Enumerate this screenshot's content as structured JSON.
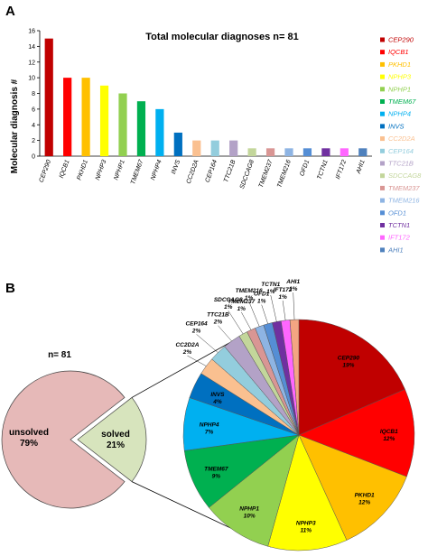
{
  "panels": {
    "a": "A",
    "b": "B"
  },
  "chart_data": [
    {
      "type": "bar",
      "title": "Total molecular diagnoses n= 81",
      "xlabel": "",
      "ylabel": "Molecular diagnosis #",
      "ylim": [
        0,
        16
      ],
      "yticks": [
        0,
        2,
        4,
        6,
        8,
        10,
        12,
        14,
        16
      ],
      "legend_position": "right",
      "categories": [
        "CEP290",
        "IQCB1",
        "PKHD1",
        "NPHP3",
        "NPHP1",
        "TMEM67",
        "NPHP4",
        "INVS",
        "CC2D2A",
        "CEP164",
        "TTC21B",
        "SDCCAG8",
        "TMEM237",
        "TMEM216",
        "OFD1",
        "TCTN1",
        "IFT172",
        "AHI1"
      ],
      "values": [
        15,
        10,
        10,
        9,
        8,
        7,
        6,
        3,
        2,
        2,
        2,
        1,
        1,
        1,
        1,
        1,
        1,
        1
      ],
      "colors": [
        "#c00000",
        "#ff0000",
        "#ffc000",
        "#ffff00",
        "#92d050",
        "#00b050",
        "#00b0f0",
        "#0070c0",
        "#fac090",
        "#93cddd",
        "#b3a2c7",
        "#c3d69b",
        "#d99694",
        "#8eb4e3",
        "#558ed5",
        "#7030a0",
        "#ff66ff",
        "#4f81bd"
      ]
    },
    {
      "type": "pie",
      "total_label": "n= 81",
      "slices": [
        {
          "label": "unsolved",
          "percent": "79%",
          "value": 79,
          "color": "#e6b9b8"
        },
        {
          "label": "solved",
          "percent": "21%",
          "value": 21,
          "color": "#d7e4bd"
        }
      ]
    },
    {
      "type": "pie",
      "slices": [
        {
          "label": "CEP290",
          "percent": "19%",
          "value": 15,
          "color": "#c00000"
        },
        {
          "label": "IQCB1",
          "percent": "12%",
          "value": 10,
          "color": "#ff0000"
        },
        {
          "label": "PKHD1",
          "percent": "12%",
          "value": 10,
          "color": "#ffc000"
        },
        {
          "label": "NPHP3",
          "percent": "11%",
          "value": 9,
          "color": "#ffff00"
        },
        {
          "label": "NPHP1",
          "percent": "10%",
          "value": 8,
          "color": "#92d050"
        },
        {
          "label": "TMEM67",
          "percent": "9%",
          "value": 7,
          "color": "#00b050"
        },
        {
          "label": "NPHP4",
          "percent": "7%",
          "value": 6,
          "color": "#00b0f0"
        },
        {
          "label": "INVS",
          "percent": "4%",
          "value": 3,
          "color": "#0070c0"
        },
        {
          "label": "CC2D2A",
          "percent": "2%",
          "value": 2,
          "color": "#fac090"
        },
        {
          "label": "CEP164",
          "percent": "2%",
          "value": 2,
          "color": "#93cddd"
        },
        {
          "label": "TTC21B",
          "percent": "2%",
          "value": 2,
          "color": "#b3a2c7"
        },
        {
          "label": "SDCCAG8",
          "percent": "1%",
          "value": 1,
          "color": "#c3d69b"
        },
        {
          "label": "TMEM237",
          "percent": "1%",
          "value": 1,
          "color": "#d99694"
        },
        {
          "label": "TMEM216",
          "percent": "1%",
          "value": 1,
          "color": "#8eb4e3"
        },
        {
          "label": "OFD1",
          "percent": "1%",
          "value": 1,
          "color": "#558ed5"
        },
        {
          "label": "TCTN1",
          "percent": "1%",
          "value": 1,
          "color": "#7030a0"
        },
        {
          "label": "IFT172",
          "percent": "1%",
          "value": 1,
          "color": "#ff66ff"
        },
        {
          "label": "AHI1",
          "percent": "1%",
          "value": 1,
          "color": "#f4a582"
        }
      ]
    }
  ]
}
